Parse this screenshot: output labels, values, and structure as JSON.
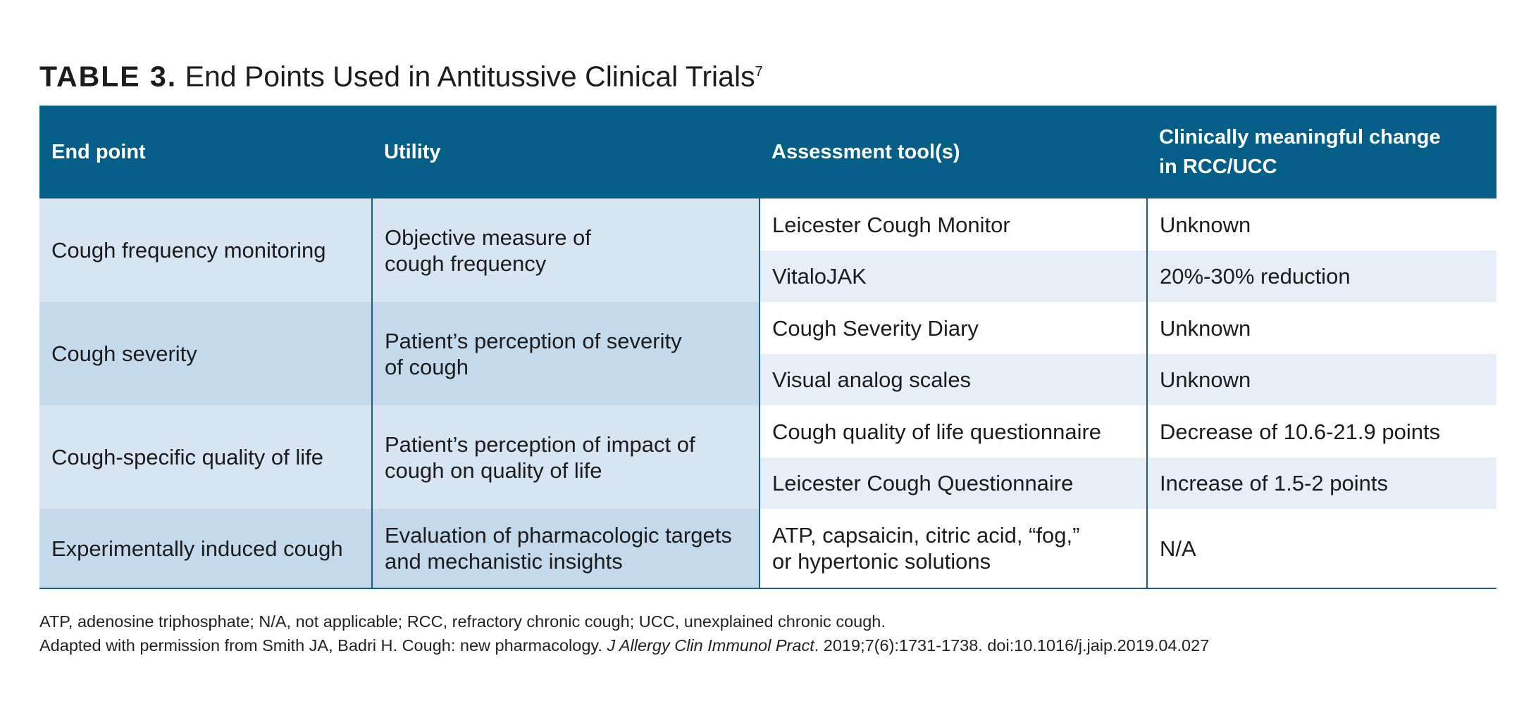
{
  "title": {
    "label": "TABLE 3.",
    "text": "End Points Used in Antitussive Clinical Trials",
    "ref": "7"
  },
  "headers": [
    "End point",
    "Utility",
    "Assessment tool(s)",
    [
      "Clinically meaningful change",
      "in RCC/UCC"
    ]
  ],
  "groups": [
    {
      "end_point": "Cough frequency monitoring",
      "utility": [
        "Objective measure of",
        "cough frequency"
      ],
      "rows": [
        {
          "tool": [
            "Leicester Cough Monitor"
          ],
          "change": "Unknown"
        },
        {
          "tool": [
            "VitaloJAK"
          ],
          "change": "20%-30% reduction"
        }
      ]
    },
    {
      "end_point": "Cough severity",
      "utility": [
        "Patient’s perception of severity",
        "of cough"
      ],
      "rows": [
        {
          "tool": [
            "Cough Severity Diary"
          ],
          "change": "Unknown"
        },
        {
          "tool": [
            "Visual analog scales"
          ],
          "change": "Unknown"
        }
      ]
    },
    {
      "end_point": "Cough-specific quality of life",
      "utility": [
        "Patient’s perception of impact of",
        "cough on quality of life"
      ],
      "rows": [
        {
          "tool": [
            "Cough quality of life questionnaire"
          ],
          "change": "Decrease of 10.6-21.9 points"
        },
        {
          "tool": [
            "Leicester Cough Questionnaire"
          ],
          "change": "Increase of 1.5-2 points"
        }
      ]
    },
    {
      "end_point": "Experimentally induced cough",
      "utility": [
        "Evaluation of pharmacologic targets",
        "and mechanistic insights"
      ],
      "rows": [
        {
          "tool": [
            "ATP, capsaicin, citric acid, “fog,”",
            "or hypertonic solutions"
          ],
          "change": "N/A"
        }
      ]
    }
  ],
  "footnotes": {
    "abbreviations": "ATP, adenosine triphosphate; N/A, not applicable; RCC, refractory chronic cough; UCC, unexplained chronic cough.",
    "source_prefix": "Adapted with permission from Smith JA, Badri H. Cough: new pharmacology. ",
    "source_journal": "J Allergy Clin Immunol Pract",
    "source_suffix": ". 2019;7(6):1731-1738. doi:10.1016/j.jaip.2019.04.027"
  },
  "colors": {
    "header_bg": "#045e87",
    "row_group_light": "#d7e4f1",
    "row_group_dark": "#c5d9ed",
    "row_alt": "#e6eef7",
    "rule": "#1e5c86"
  }
}
